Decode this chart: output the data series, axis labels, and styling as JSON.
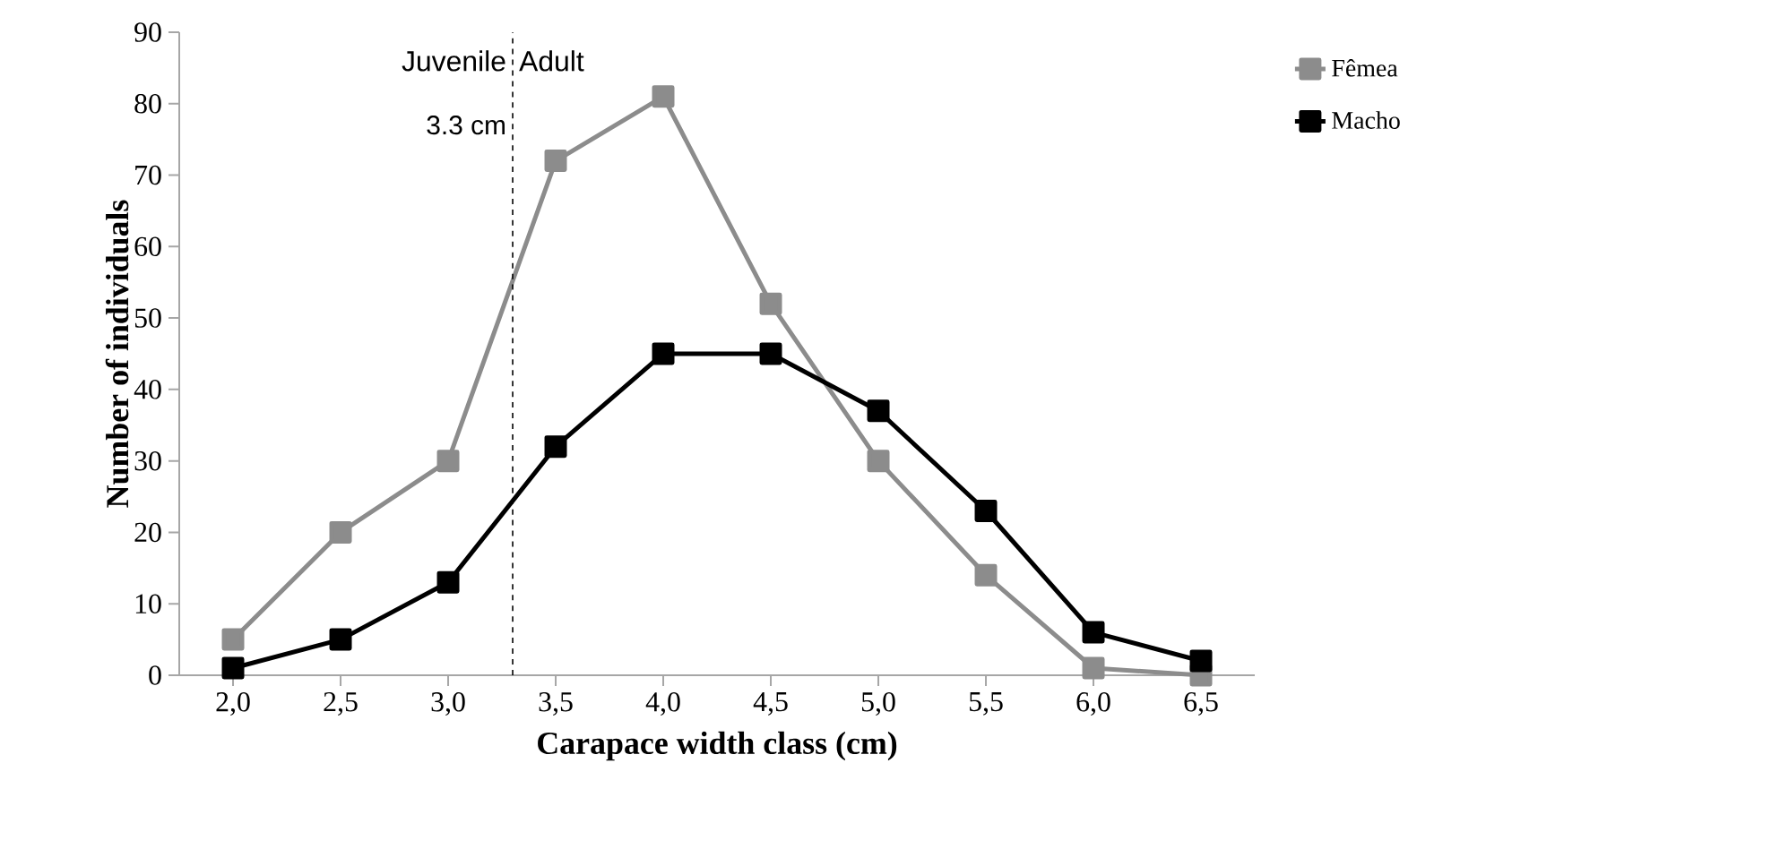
{
  "chart_data": {
    "type": "line",
    "xlabel": "Carapace width class (cm)",
    "ylabel": "Number of individuals",
    "x": [
      2.0,
      2.5,
      3.0,
      3.5,
      4.0,
      4.5,
      5.0,
      5.5,
      6.0,
      6.5
    ],
    "xlim": [
      1.75,
      6.75
    ],
    "xticks": [
      {
        "value": 2.0,
        "label": "2,0"
      },
      {
        "value": 2.5,
        "label": "2,5"
      },
      {
        "value": 3.0,
        "label": "3,0"
      },
      {
        "value": 3.5,
        "label": "3,5"
      },
      {
        "value": 4.0,
        "label": "4,0"
      },
      {
        "value": 4.5,
        "label": "4,5"
      },
      {
        "value": 5.0,
        "label": "5,0"
      },
      {
        "value": 5.5,
        "label": "5,5"
      },
      {
        "value": 6.0,
        "label": "6,0"
      },
      {
        "value": 6.5,
        "label": "6,5"
      }
    ],
    "ylim": [
      0,
      90
    ],
    "yticks": [
      0,
      10,
      20,
      30,
      40,
      50,
      60,
      70,
      80,
      90
    ],
    "series": [
      {
        "name": "Fêmea",
        "color": "#8c8c8c",
        "values": [
          5,
          20,
          30,
          72,
          81,
          52,
          30,
          14,
          1,
          0
        ]
      },
      {
        "name": "Macho",
        "color": "#000000",
        "values": [
          1,
          5,
          13,
          32,
          45,
          45,
          37,
          23,
          6,
          2
        ]
      }
    ],
    "marker": "square",
    "line_style": "solid",
    "legend": "top right",
    "grid": false,
    "ref_lines": [
      {
        "axis": "x",
        "value": 3.3,
        "label": "3.3 cm",
        "line_style": "dashed"
      }
    ],
    "annotations": [
      "Juvenile",
      "Adult"
    ]
  }
}
